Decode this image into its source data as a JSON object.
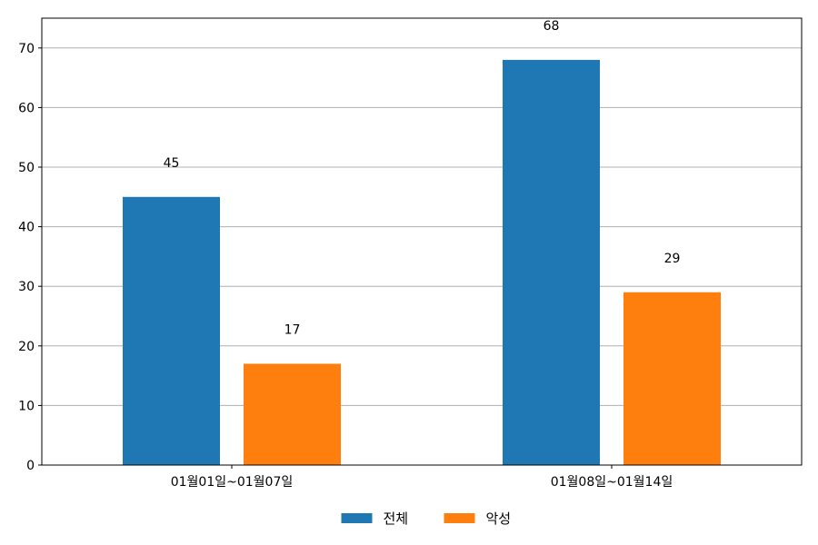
{
  "chart_data": {
    "type": "bar",
    "categories": [
      "01월01일~01월07일",
      "01월08일~01월14일"
    ],
    "series": [
      {
        "name": "전체",
        "values": [
          45,
          68
        ],
        "color": "#1f77b4"
      },
      {
        "name": "악성",
        "values": [
          17,
          29
        ],
        "color": "#ff7f0e"
      }
    ],
    "xlabel": "",
    "ylabel": "",
    "ylim": [
      0,
      75
    ],
    "yticks": [
      0,
      10,
      20,
      30,
      40,
      50,
      60,
      70
    ],
    "grid": "horizontal",
    "legend_position": "bottom-center",
    "data_labels": true
  }
}
